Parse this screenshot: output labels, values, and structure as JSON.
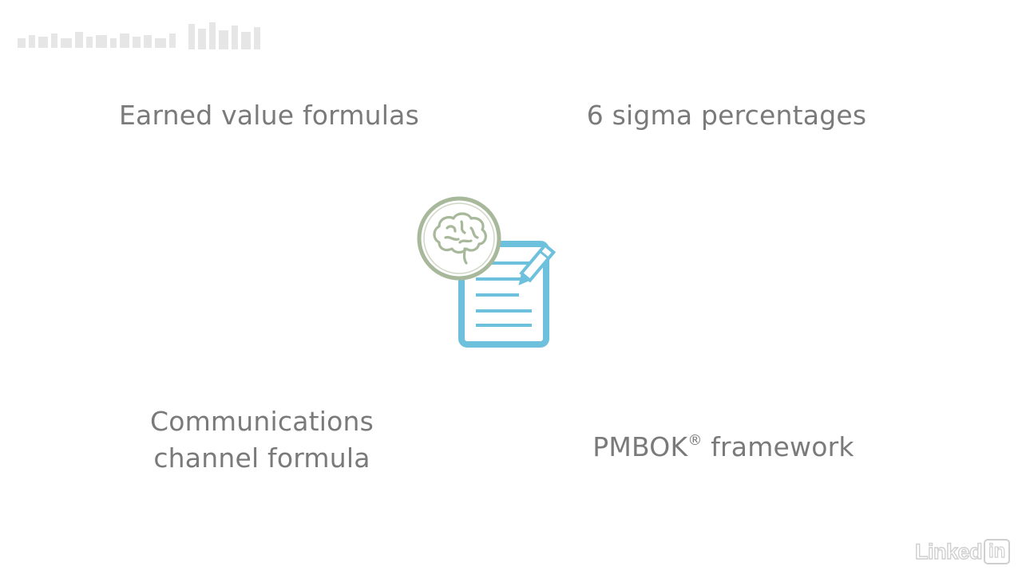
{
  "slide": {
    "topics": {
      "earned_value": "Earned value formulas",
      "six_sigma": "6 sigma percentages",
      "communications_line1": "Communications",
      "communications_line2": "channel formula",
      "pmbok_label": "PMBOK",
      "pmbok_mark": "®",
      "pmbok_rest": " framework"
    },
    "icon": "brain-document-pencil-icon",
    "colors": {
      "text": "#7a7a7a",
      "brain_green": "#a8b89a",
      "document_blue": "#6ec1dd",
      "background": "#ffffff"
    }
  },
  "branding": {
    "watermark": "linkedin-logo",
    "linkedin_text": "Linked",
    "linkedin_box_text": "in"
  }
}
